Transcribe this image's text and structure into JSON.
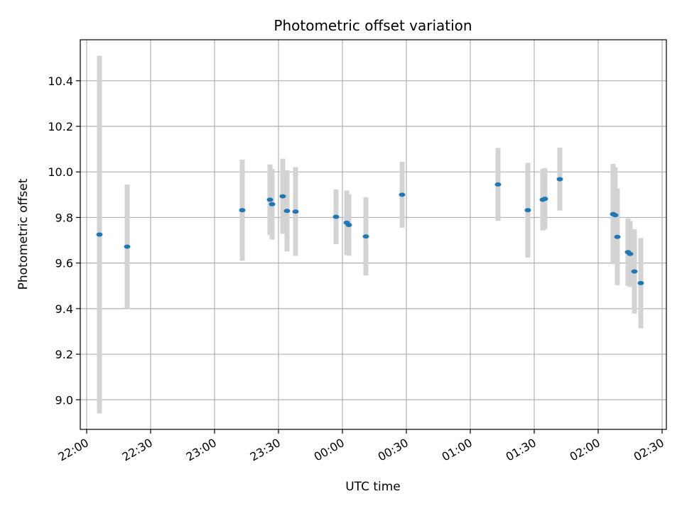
{
  "chart_data": {
    "type": "scatter",
    "title": "Photometric offset variation",
    "xlabel": "UTC time",
    "ylabel": "Photometric offset",
    "x_ticks": [
      "22:00",
      "22:30",
      "23:00",
      "23:30",
      "00:00",
      "00:30",
      "01:00",
      "01:30",
      "02:00",
      "02:30"
    ],
    "y_ticks": [
      "9.0",
      "9.2",
      "9.4",
      "9.6",
      "9.8",
      "10.0",
      "10.2",
      "10.4"
    ],
    "xlim": [
      "21:57",
      "02:32"
    ],
    "ylim": [
      8.87,
      10.58
    ],
    "grid": true,
    "colors": {
      "points": "#1f77b4",
      "errorbars": "#d3d3d3",
      "grid": "#b0b0b0",
      "axes": "#000000"
    },
    "points": [
      {
        "time": "22:06",
        "y": 9.725,
        "err": 0.785
      },
      {
        "time": "22:19",
        "y": 9.672,
        "err": 0.272
      },
      {
        "time": "23:13",
        "y": 9.832,
        "err": 0.222
      },
      {
        "time": "23:26",
        "y": 9.878,
        "err": 0.155
      },
      {
        "time": "23:27",
        "y": 9.858,
        "err": 0.155
      },
      {
        "time": "23:32",
        "y": 9.893,
        "err": 0.165
      },
      {
        "time": "23:34",
        "y": 9.829,
        "err": 0.178
      },
      {
        "time": "23:38",
        "y": 9.826,
        "err": 0.195
      },
      {
        "time": "23:57",
        "y": 9.803,
        "err": 0.12
      },
      {
        "time": "00:02",
        "y": 9.777,
        "err": 0.142
      },
      {
        "time": "00:03",
        "y": 9.767,
        "err": 0.135
      },
      {
        "time": "00:11",
        "y": 9.717,
        "err": 0.172
      },
      {
        "time": "00:28",
        "y": 9.9,
        "err": 0.145
      },
      {
        "time": "01:13",
        "y": 9.945,
        "err": 0.16
      },
      {
        "time": "01:27",
        "y": 9.832,
        "err": 0.208
      },
      {
        "time": "01:34",
        "y": 9.878,
        "err": 0.135
      },
      {
        "time": "01:35",
        "y": 9.882,
        "err": 0.135
      },
      {
        "time": "01:42",
        "y": 9.968,
        "err": 0.138
      },
      {
        "time": "02:07",
        "y": 9.815,
        "err": 0.22
      },
      {
        "time": "02:08",
        "y": 9.81,
        "err": 0.21
      },
      {
        "time": "02:09",
        "y": 9.715,
        "err": 0.212
      },
      {
        "time": "02:14",
        "y": 9.648,
        "err": 0.148
      },
      {
        "time": "02:15",
        "y": 9.64,
        "err": 0.145
      },
      {
        "time": "02:17",
        "y": 9.563,
        "err": 0.185
      },
      {
        "time": "02:20",
        "y": 9.512,
        "err": 0.198
      }
    ]
  }
}
